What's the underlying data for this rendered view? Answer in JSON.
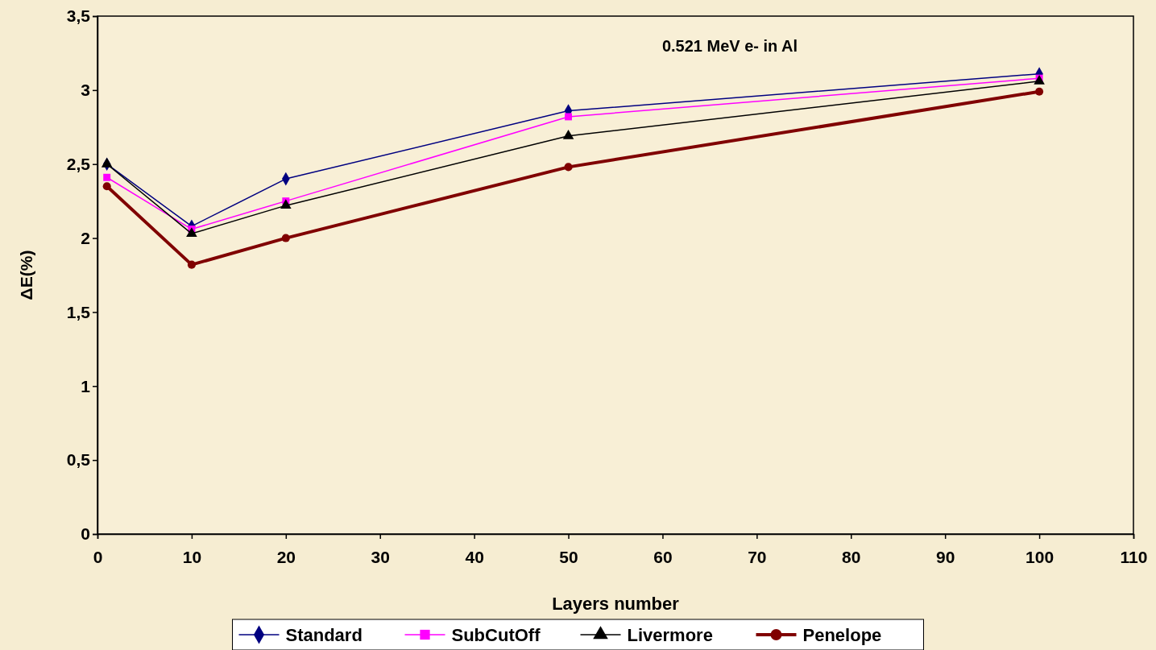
{
  "chart_data": {
    "type": "line",
    "title": "0.521 MeV e- in Al",
    "xlabel": "Layers number",
    "ylabel": "ΔE(%)",
    "x": [
      1,
      10,
      20,
      50,
      100
    ],
    "series": [
      {
        "name": "Standard",
        "color": "#000080",
        "values": [
          2.5,
          2.08,
          2.4,
          2.86,
          3.11
        ],
        "marker": "diamond"
      },
      {
        "name": "SubCutOff",
        "color": "#ff00ff",
        "values": [
          2.41,
          2.06,
          2.25,
          2.82,
          3.08
        ],
        "marker": "square"
      },
      {
        "name": "Livermore",
        "color": "#000000",
        "values": [
          2.5,
          2.03,
          2.22,
          2.69,
          3.06
        ],
        "marker": "triangle"
      },
      {
        "name": "Penelope",
        "color": "#800000",
        "values": [
          2.35,
          1.82,
          2.0,
          2.48,
          2.99
        ],
        "marker": "circle"
      }
    ],
    "xlim": [
      0,
      110
    ],
    "xticks": [
      0,
      10,
      20,
      30,
      40,
      50,
      60,
      70,
      80,
      90,
      100,
      110
    ],
    "ylim": [
      0,
      3.5
    ],
    "yticks": [
      0,
      {
        "value": 0.5,
        "label": "0,5"
      },
      1,
      {
        "value": 1.5,
        "label": "1,5"
      },
      2,
      {
        "value": 2.5,
        "label": "2,5"
      },
      3,
      {
        "value": 3.5,
        "label": "3,5"
      }
    ],
    "grid": false,
    "legend": "bottom",
    "line_style": "solid"
  }
}
